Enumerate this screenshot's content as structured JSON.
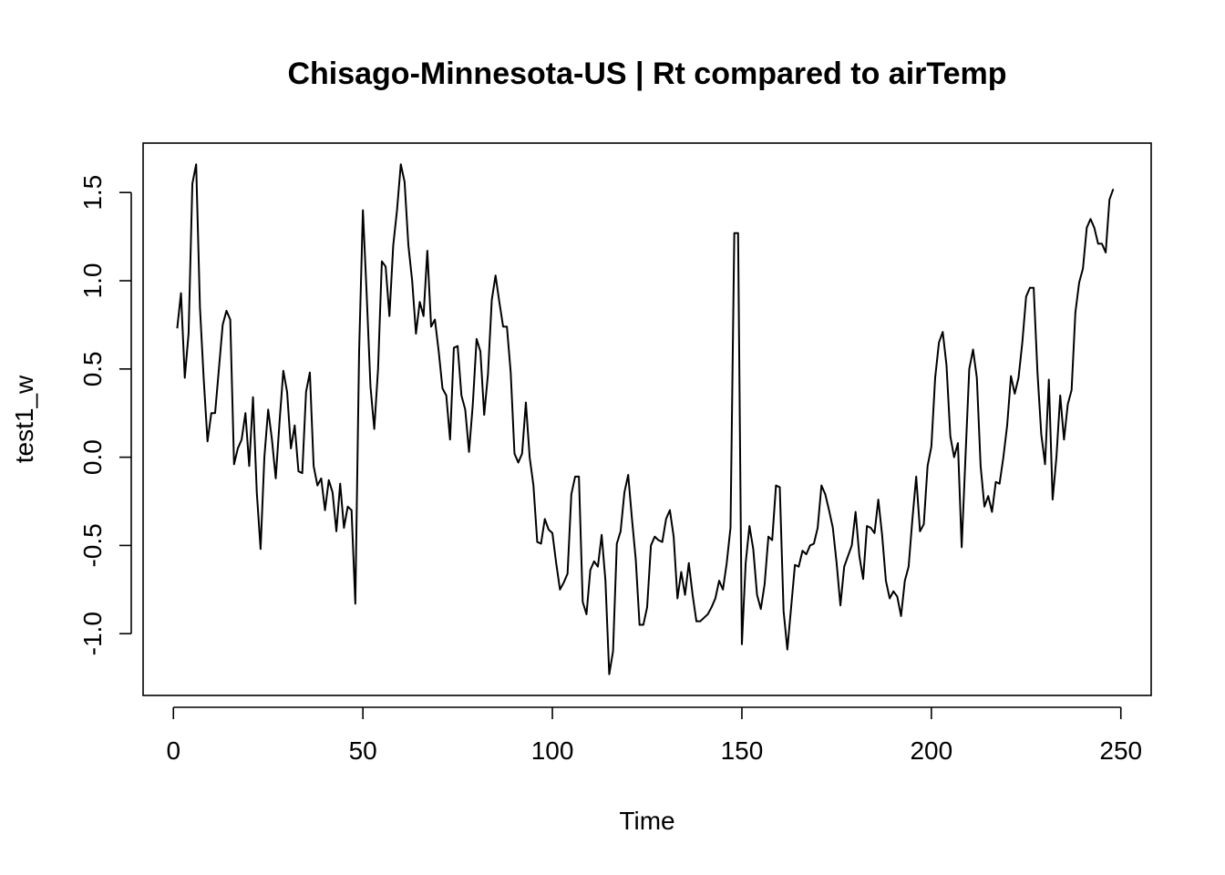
{
  "chart_data": {
    "type": "line",
    "title": "Chisago-Minnesota-US | Rt compared to airTemp",
    "xlabel": "Time",
    "ylabel": "test1_w",
    "xlim": [
      -8,
      258
    ],
    "ylim": [
      -1.35,
      1.78
    ],
    "xticks": [
      0,
      50,
      100,
      150,
      200,
      250
    ],
    "yticks": [
      -1.0,
      -0.5,
      0.0,
      0.5,
      1.0,
      1.5
    ],
    "ytick_labels": [
      "-1.0",
      "-0.5",
      "0.0",
      "0.5",
      "1.0",
      "1.5"
    ],
    "grid": false,
    "series": [
      {
        "color": "#000000",
        "x_start": 1,
        "values": [
          0.73,
          0.93,
          0.45,
          0.7,
          1.55,
          1.66,
          0.85,
          0.44,
          0.09,
          0.25,
          0.25,
          0.5,
          0.75,
          0.83,
          0.78,
          -0.04,
          0.05,
          0.1,
          0.25,
          -0.05,
          0.34,
          -0.2,
          -0.52,
          0.0,
          0.27,
          0.1,
          -0.12,
          0.2,
          0.49,
          0.37,
          0.05,
          0.18,
          -0.08,
          -0.09,
          0.37,
          0.48,
          -0.05,
          -0.16,
          -0.12,
          -0.3,
          -0.13,
          -0.2,
          -0.42,
          -0.15,
          -0.4,
          -0.28,
          -0.3,
          -0.83,
          0.6,
          1.4,
          0.92,
          0.4,
          0.16,
          0.5,
          1.11,
          1.08,
          0.8,
          1.2,
          1.4,
          1.66,
          1.56,
          1.2,
          1.0,
          0.7,
          0.88,
          0.8,
          1.17,
          0.74,
          0.78,
          0.6,
          0.39,
          0.35,
          0.1,
          0.62,
          0.63,
          0.35,
          0.27,
          0.03,
          0.3,
          0.67,
          0.6,
          0.24,
          0.47,
          0.89,
          1.03,
          0.88,
          0.74,
          0.74,
          0.48,
          0.02,
          -0.03,
          0.02,
          0.31,
          0.0,
          -0.16,
          -0.48,
          -0.49,
          -0.35,
          -0.41,
          -0.43,
          -0.6,
          -0.75,
          -0.71,
          -0.66,
          -0.21,
          -0.11,
          -0.11,
          -0.82,
          -0.89,
          -0.64,
          -0.59,
          -0.62,
          -0.44,
          -0.7,
          -1.23,
          -1.1,
          -0.49,
          -0.42,
          -0.2,
          -0.1,
          -0.35,
          -0.58,
          -0.95,
          -0.95,
          -0.85,
          -0.5,
          -0.45,
          -0.47,
          -0.48,
          -0.35,
          -0.3,
          -0.45,
          -0.8,
          -0.65,
          -0.78,
          -0.6,
          -0.78,
          -0.93,
          -0.93,
          -0.91,
          -0.89,
          -0.85,
          -0.8,
          -0.7,
          -0.75,
          -0.6,
          -0.4,
          1.27,
          1.27,
          -1.06,
          -0.6,
          -0.39,
          -0.52,
          -0.78,
          -0.86,
          -0.72,
          -0.45,
          -0.47,
          -0.16,
          -0.17,
          -0.87,
          -1.09,
          -0.85,
          -0.61,
          -0.62,
          -0.53,
          -0.55,
          -0.5,
          -0.49,
          -0.4,
          -0.16,
          -0.21,
          -0.3,
          -0.4,
          -0.6,
          -0.84,
          -0.62,
          -0.56,
          -0.5,
          -0.31,
          -0.56,
          -0.69,
          -0.39,
          -0.4,
          -0.43,
          -0.24,
          -0.44,
          -0.7,
          -0.8,
          -0.76,
          -0.79,
          -0.9,
          -0.7,
          -0.62,
          -0.35,
          -0.11,
          -0.42,
          -0.38,
          -0.05,
          0.06,
          0.45,
          0.65,
          0.71,
          0.52,
          0.12,
          0.0,
          0.08,
          -0.51,
          0.0,
          0.5,
          0.61,
          0.45,
          -0.05,
          -0.28,
          -0.22,
          -0.31,
          -0.14,
          -0.15,
          0.0,
          0.18,
          0.46,
          0.36,
          0.45,
          0.65,
          0.91,
          0.96,
          0.96,
          0.48,
          0.13,
          -0.04,
          0.44,
          -0.24,
          0.0,
          0.35,
          0.1,
          0.3,
          0.38,
          0.82,
          0.99,
          1.07,
          1.3,
          1.35,
          1.3,
          1.21,
          1.21,
          1.16,
          1.46,
          1.52
        ]
      }
    ]
  }
}
